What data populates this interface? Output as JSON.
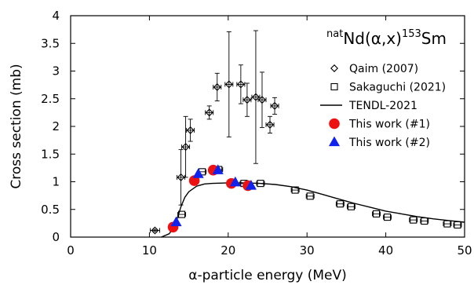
{
  "chart_data": {
    "type": "scatter",
    "xlabel": "α-particle energy (MeV)",
    "ylabel": "Cross section (mb)",
    "xlim": [
      0,
      50
    ],
    "ylim": [
      0,
      4
    ],
    "xticks": [
      0,
      10,
      20,
      30,
      40,
      50
    ],
    "yticks": [
      0,
      0.5,
      1,
      1.5,
      2,
      2.5,
      3,
      3.5,
      4
    ],
    "ytick_labels": [
      "0",
      "0.5",
      "1",
      "1.5",
      "2",
      "2.5",
      "3",
      "3.5",
      "4"
    ],
    "grid": false,
    "legend_position": "top-right",
    "annotation": {
      "sup": "nat",
      "text": "Nd(α,x)",
      "sup2": "153",
      "text2": "Sm"
    },
    "series": [
      {
        "name": "Qaim (2007)",
        "marker": "diamond-open",
        "color": "#000000",
        "points": [
          {
            "x": 10.7,
            "y": 0.12,
            "xerr": 0.6,
            "yerr": 0.02
          },
          {
            "x": 14.0,
            "y": 1.08,
            "xerr": 0.5,
            "yerr": 0.5
          },
          {
            "x": 14.6,
            "y": 1.63,
            "xerr": 0.5,
            "yerr": 0.55
          },
          {
            "x": 15.2,
            "y": 1.93,
            "xerr": 0.5,
            "yerr": 0.2
          },
          {
            "x": 17.6,
            "y": 2.25,
            "xerr": 0.5,
            "yerr": 0.12
          },
          {
            "x": 18.6,
            "y": 2.71,
            "xerr": 0.5,
            "yerr": 0.25
          },
          {
            "x": 20.1,
            "y": 2.76,
            "xerr": 0.5,
            "yerr": 0.95
          },
          {
            "x": 21.6,
            "y": 2.76,
            "xerr": 0.5,
            "yerr": 0.35
          },
          {
            "x": 22.4,
            "y": 2.48,
            "xerr": 0.5,
            "yerr": 0.3
          },
          {
            "x": 23.5,
            "y": 2.53,
            "xerr": 0.5,
            "yerr": 1.2
          },
          {
            "x": 24.3,
            "y": 2.48,
            "xerr": 0.5,
            "yerr": 0.5
          },
          {
            "x": 25.3,
            "y": 2.03,
            "xerr": 0.5,
            "yerr": 0.15
          },
          {
            "x": 25.9,
            "y": 2.37,
            "xerr": 0.5,
            "yerr": 0.15
          }
        ]
      },
      {
        "name": "Sakaguchi (2021)",
        "marker": "square-open",
        "color": "#000000",
        "points": [
          {
            "x": 14.1,
            "y": 0.41,
            "xerr": 0.5
          },
          {
            "x": 16.7,
            "y": 1.18,
            "xerr": 0.5
          },
          {
            "x": 18.8,
            "y": 1.22,
            "xerr": 0.5
          },
          {
            "x": 22.0,
            "y": 0.97,
            "xerr": 0.5
          },
          {
            "x": 24.1,
            "y": 0.97,
            "xerr": 0.5
          },
          {
            "x": 28.5,
            "y": 0.85,
            "xerr": 0.5
          },
          {
            "x": 30.4,
            "y": 0.74,
            "xerr": 0.5
          },
          {
            "x": 34.2,
            "y": 0.6,
            "xerr": 0.5
          },
          {
            "x": 35.6,
            "y": 0.55,
            "xerr": 0.5
          },
          {
            "x": 38.8,
            "y": 0.42,
            "xerr": 0.5
          },
          {
            "x": 40.2,
            "y": 0.36,
            "xerr": 0.5
          },
          {
            "x": 43.5,
            "y": 0.31,
            "xerr": 0.5
          },
          {
            "x": 44.9,
            "y": 0.29,
            "xerr": 0.5
          },
          {
            "x": 47.8,
            "y": 0.24,
            "xerr": 0.5
          },
          {
            "x": 49.1,
            "y": 0.22,
            "xerr": 0.5
          }
        ]
      },
      {
        "name": "TENDL-2021",
        "marker": "line",
        "color": "#000000",
        "points": [
          {
            "x": 11.5,
            "y": 0.0
          },
          {
            "x": 12.5,
            "y": 0.06
          },
          {
            "x": 13.0,
            "y": 0.15
          },
          {
            "x": 13.5,
            "y": 0.32
          },
          {
            "x": 14.0,
            "y": 0.55
          },
          {
            "x": 14.5,
            "y": 0.72
          },
          {
            "x": 15.0,
            "y": 0.82
          },
          {
            "x": 16.0,
            "y": 0.92
          },
          {
            "x": 17.0,
            "y": 0.96
          },
          {
            "x": 18.0,
            "y": 0.97
          },
          {
            "x": 20.0,
            "y": 0.98
          },
          {
            "x": 22.0,
            "y": 0.98
          },
          {
            "x": 24.0,
            "y": 0.97
          },
          {
            "x": 26.0,
            "y": 0.95
          },
          {
            "x": 28.0,
            "y": 0.91
          },
          {
            "x": 30.0,
            "y": 0.85
          },
          {
            "x": 32.0,
            "y": 0.77
          },
          {
            "x": 34.0,
            "y": 0.69
          },
          {
            "x": 36.0,
            "y": 0.61
          },
          {
            "x": 38.0,
            "y": 0.54
          },
          {
            "x": 40.0,
            "y": 0.47
          },
          {
            "x": 42.0,
            "y": 0.42
          },
          {
            "x": 44.0,
            "y": 0.37
          },
          {
            "x": 46.0,
            "y": 0.33
          },
          {
            "x": 48.0,
            "y": 0.3
          },
          {
            "x": 50.0,
            "y": 0.27
          }
        ]
      },
      {
        "name": "This work (#1)",
        "marker": "circle-filled",
        "color": "#ee1111",
        "points": [
          {
            "x": 13.0,
            "y": 0.18
          },
          {
            "x": 15.7,
            "y": 1.02
          },
          {
            "x": 18.1,
            "y": 1.21
          },
          {
            "x": 20.4,
            "y": 0.97
          },
          {
            "x": 22.5,
            "y": 0.93
          }
        ]
      },
      {
        "name": "This work (#2)",
        "marker": "triangle-filled",
        "color": "#1122ee",
        "points": [
          {
            "x": 13.4,
            "y": 0.27
          },
          {
            "x": 16.2,
            "y": 1.14
          },
          {
            "x": 18.7,
            "y": 1.21
          },
          {
            "x": 20.9,
            "y": 0.99
          },
          {
            "x": 22.9,
            "y": 0.93
          }
        ]
      }
    ]
  }
}
